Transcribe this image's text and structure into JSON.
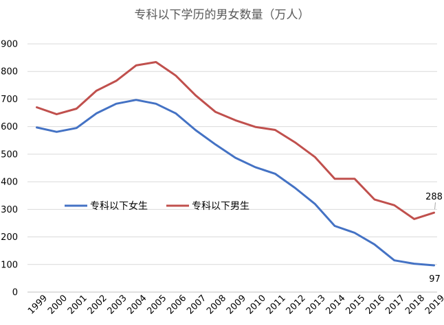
{
  "chart_data": {
    "type": "line",
    "title": "专科以下学历的男女数量（万人）",
    "xlabel": "",
    "ylabel": "",
    "categories": [
      "1999",
      "2000",
      "2001",
      "2002",
      "2003",
      "2004",
      "2005",
      "2006",
      "2007",
      "2008",
      "2009",
      "2010",
      "2011",
      "2012",
      "2013",
      "2014",
      "2015",
      "2016",
      "2017",
      "2018",
      "2019"
    ],
    "ylim": [
      0,
      900
    ],
    "yticks": [
      "0",
      "100",
      "200",
      "300",
      "400",
      "500",
      "600",
      "700",
      "800",
      "900"
    ],
    "grid": true,
    "legend_position": "center-left",
    "series": [
      {
        "name": "专科以下女生",
        "color": "#4472C4",
        "values": [
          597,
          581,
          595,
          648,
          683,
          697,
          683,
          648,
          587,
          535,
          487,
          453,
          429,
          378,
          320,
          240,
          215,
          173,
          115,
          103,
          97
        ]
      },
      {
        "name": "专科以下男生",
        "color": "#C0504D",
        "values": [
          670,
          645,
          665,
          730,
          766,
          822,
          834,
          785,
          713,
          653,
          623,
          599,
          588,
          543,
          490,
          411,
          411,
          336,
          315,
          265,
          288
        ]
      }
    ],
    "data_labels": [
      "288",
      "97"
    ]
  }
}
